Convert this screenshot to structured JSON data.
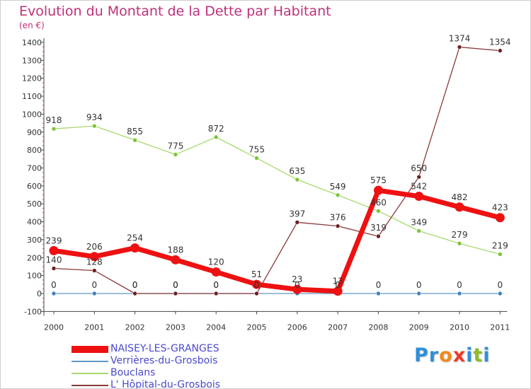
{
  "header": {
    "title": "Evolution du Montant de la Dette par Habitant",
    "unit": "(en €)"
  },
  "logo": {
    "text": "Proxiti",
    "letters": [
      "P",
      "r",
      "o",
      "x",
      "i",
      "t",
      "i"
    ],
    "colors": [
      "#2f8fd6",
      "#2f8fd6",
      "#f08a1c",
      "#ee3a2a",
      "#2f8fd6",
      "#8cbf26",
      "#2f8fd6"
    ]
  },
  "chart_data": {
    "type": "line",
    "title": "Evolution du Montant de la Dette par Habitant",
    "ylabel": "(en €)",
    "xlabel": "",
    "x": [
      "2000",
      "2001",
      "2002",
      "2003",
      "2004",
      "2005",
      "2006",
      "2007",
      "2008",
      "2009",
      "2010",
      "2011"
    ],
    "ylim": [
      -100,
      1400
    ],
    "yticks": [
      -100,
      0,
      100,
      200,
      300,
      400,
      500,
      600,
      700,
      800,
      900,
      1000,
      1100,
      1200,
      1300,
      1400
    ],
    "grid": false,
    "legend": "bottom-left",
    "series": [
      {
        "name": "Verrières-du-Grosbois",
        "color": "#5f98c8",
        "marker": "#3d82c4",
        "values": [
          0,
          0,
          0,
          0,
          0,
          0,
          0,
          0,
          0,
          0,
          0,
          0
        ],
        "labels": [
          "0",
          "0",
          "0",
          "0",
          "0",
          "0",
          "0",
          "0",
          "0",
          "0",
          "0",
          "0"
        ]
      },
      {
        "name": "Bouclans",
        "color": "#a8d86e",
        "marker": "#7cc43a",
        "values": [
          918,
          934,
          855,
          775,
          872,
          755,
          635,
          549,
          460,
          349,
          279,
          219
        ],
        "labels": [
          "918",
          "934",
          "855",
          "775",
          "872",
          "755",
          "635",
          "549",
          "460",
          "349",
          "279",
          "219"
        ]
      },
      {
        "name": "L' Hôpital-du-Grosbois",
        "color": "#8b3a3a",
        "marker": "#6e1f1f",
        "values": [
          140,
          128,
          0,
          0,
          0,
          0,
          397,
          376,
          319,
          650,
          1374,
          1354
        ],
        "labels": [
          "140",
          "128",
          "0",
          "0",
          "0",
          "0",
          "397",
          "376",
          "319",
          "650",
          "1374",
          "1354"
        ]
      },
      {
        "name": "NAISEY-LES-GRANGES",
        "color": "#ee1111",
        "marker": "#ee1111",
        "values": [
          239,
          206,
          254,
          188,
          120,
          51,
          23,
          13,
          575,
          542,
          482,
          423
        ],
        "labels": [
          "239",
          "206",
          "254",
          "188",
          "120",
          "51",
          "23",
          "13",
          "575",
          "542",
          "482",
          "423"
        ]
      }
    ]
  },
  "legend": {
    "items": [
      {
        "name": "NAISEY-LES-GRANGES",
        "color": "#ee1111"
      },
      {
        "name": "Verrières-du-Grosbois",
        "color": "#5f98c8"
      },
      {
        "name": "Bouclans",
        "color": "#a8d86e"
      },
      {
        "name": "L' Hôpital-du-Grosbois",
        "color": "#8b3a3a"
      }
    ]
  }
}
